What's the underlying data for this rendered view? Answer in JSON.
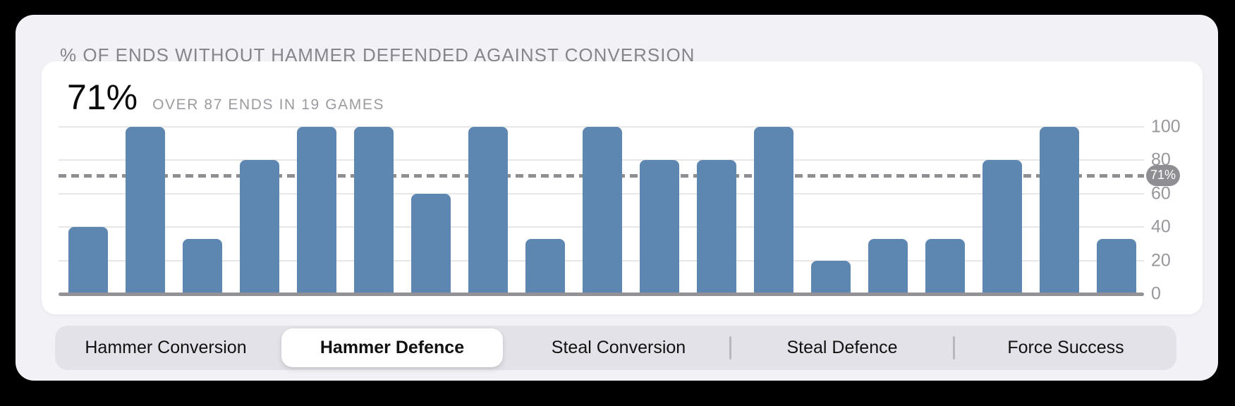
{
  "panel": {
    "title": "% OF ENDS WITHOUT HAMMER DEFENDED AGAINST CONVERSION"
  },
  "stat": {
    "value": "71%",
    "caption": "OVER 87 ENDS IN 19 GAMES"
  },
  "chart_data": {
    "type": "bar",
    "title": "% OF ENDS WITHOUT HAMMER DEFENDED AGAINST CONVERSION",
    "values": [
      40,
      100,
      33,
      80,
      100,
      100,
      60,
      100,
      33,
      100,
      80,
      80,
      100,
      20,
      33,
      33,
      80,
      100,
      33
    ],
    "ylim": [
      0,
      100
    ],
    "yticks": [
      0,
      20,
      40,
      60,
      80,
      100
    ],
    "grid": true,
    "axis_side": "right",
    "reference_line": {
      "value": 71,
      "label": "71%"
    },
    "bar_color": "#5d87b0",
    "xlabel": "",
    "ylabel": ""
  },
  "colors": {
    "bar": "#5d87b0",
    "badge_bg": "#8e8e93",
    "badge_text": "#ffffff",
    "card_bg": "#ffffff",
    "panel_bg": "#f1f1f6",
    "page_bg": "#000000",
    "segment_track": "#e3e2e8"
  },
  "tabs": {
    "items": [
      {
        "label": "Hammer Conversion",
        "selected": false
      },
      {
        "label": "Hammer Defence",
        "selected": true
      },
      {
        "label": "Steal Conversion",
        "selected": false
      },
      {
        "label": "Steal Defence",
        "selected": false
      },
      {
        "label": "Force Success",
        "selected": false
      }
    ]
  }
}
